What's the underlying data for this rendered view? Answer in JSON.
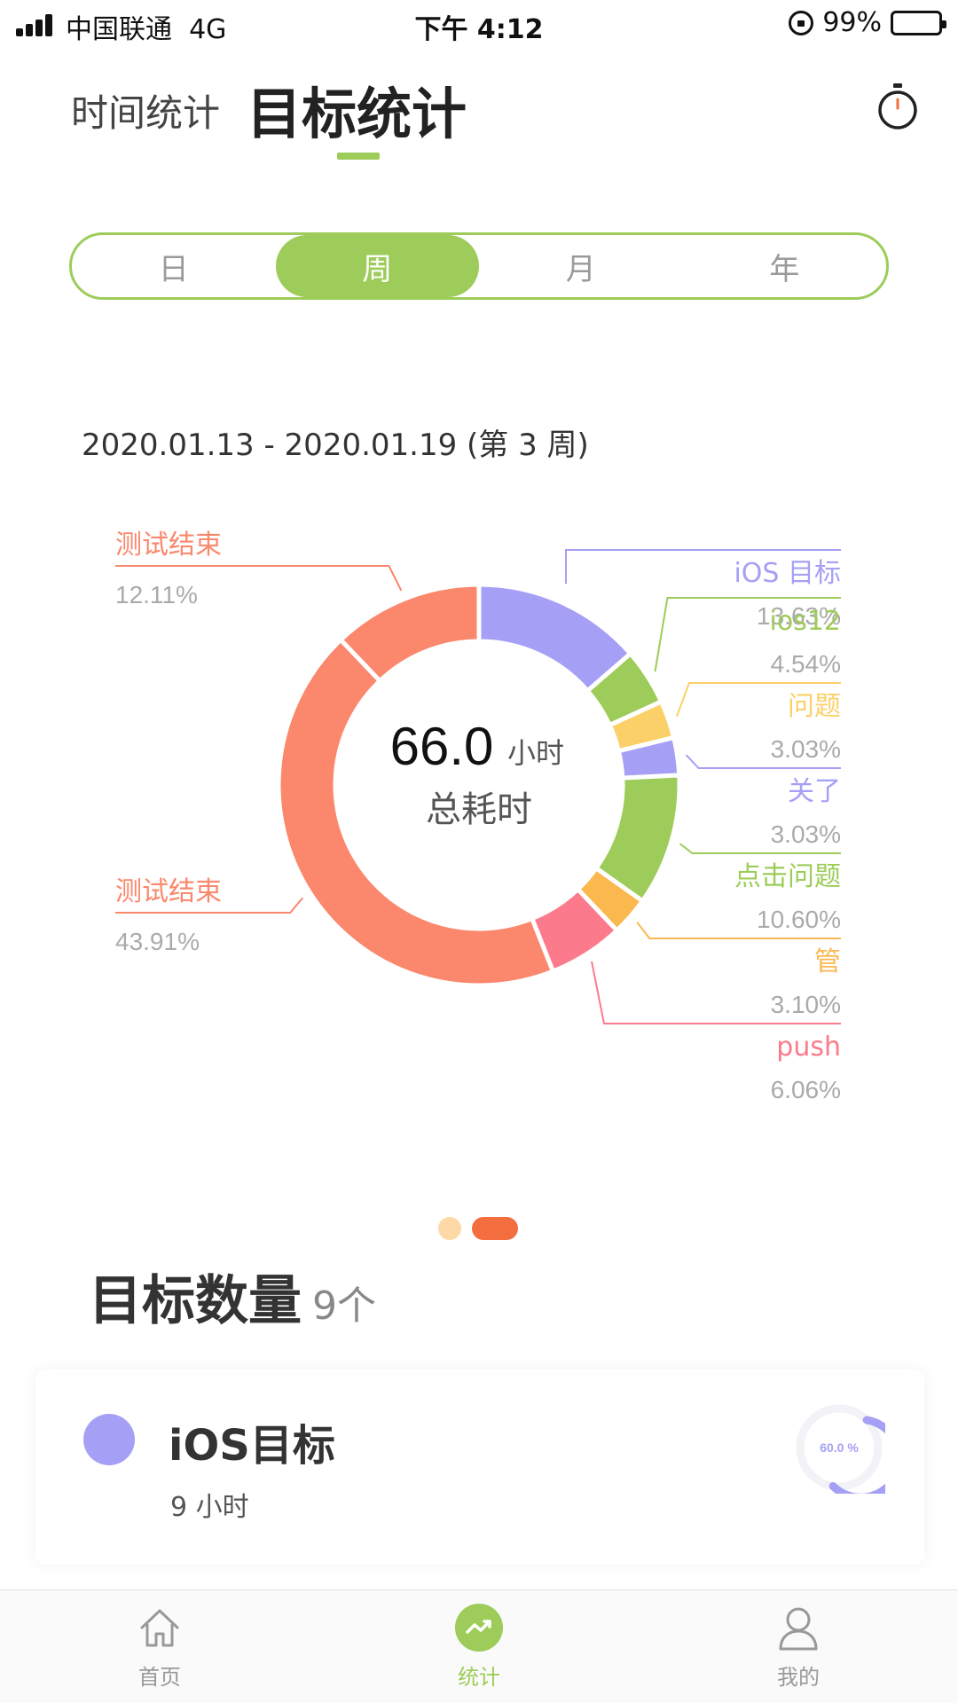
{
  "status_bar": {
    "carrier": "中国联通",
    "network": "4G",
    "time": "下午 4:12",
    "battery": "99%"
  },
  "header": {
    "tab_time": "时间统计",
    "tab_goal": "目标统计",
    "timer_icon": "stopwatch-icon",
    "accent_color": "#9dcc5a"
  },
  "period": {
    "options": [
      "日",
      "周",
      "月",
      "年"
    ],
    "selected": "周"
  },
  "date_range": "2020.01.13 - 2020.01.19 (第 3 周)",
  "center": {
    "value": "66.0",
    "unit": "小时",
    "label": "总耗时"
  },
  "chart_data": {
    "type": "pie",
    "donut": true,
    "total_hours": 66.0,
    "slices": [
      {
        "label": "iOS 目标",
        "pct": 13.63,
        "pct_text": "13.63%",
        "color": "#a5a0f5"
      },
      {
        "label": "ios12",
        "pct": 4.54,
        "pct_text": "4.54%",
        "color": "#9dcc5a"
      },
      {
        "label": "问题",
        "pct": 3.03,
        "pct_text": "3.03%",
        "color": "#fbd068"
      },
      {
        "label": "关了",
        "pct": 3.03,
        "pct_text": "3.03%",
        "color": "#a5a0f5"
      },
      {
        "label": "点击问题",
        "pct": 10.6,
        "pct_text": "10.60%",
        "color": "#9dcc5a"
      },
      {
        "label": "管",
        "pct": 3.1,
        "pct_text": "3.10%",
        "color": "#fbb84f"
      },
      {
        "label": "push",
        "pct": 6.06,
        "pct_text": "6.06%",
        "color": "#fb7b8c"
      },
      {
        "label": "测试结束",
        "pct": 43.91,
        "pct_text": "43.91%",
        "color": "#fb876c"
      },
      {
        "label": "测试结束",
        "pct": 12.11,
        "pct_text": "12.11%",
        "color": "#fb876c"
      }
    ]
  },
  "pager": {
    "count": 2,
    "active": 1
  },
  "goals": {
    "title": "目标数量",
    "count": "9个",
    "items": [
      {
        "name": "iOS目标",
        "hours": "9 小时",
        "progress_pct": 60.0,
        "progress_text": "60.0 %",
        "color": "#a5a0f5"
      }
    ]
  },
  "tabbar": {
    "items": [
      {
        "label": "首页",
        "icon": "home-icon"
      },
      {
        "label": "统计",
        "icon": "stats-icon"
      },
      {
        "label": "我的",
        "icon": "profile-icon"
      }
    ],
    "active": 1
  }
}
